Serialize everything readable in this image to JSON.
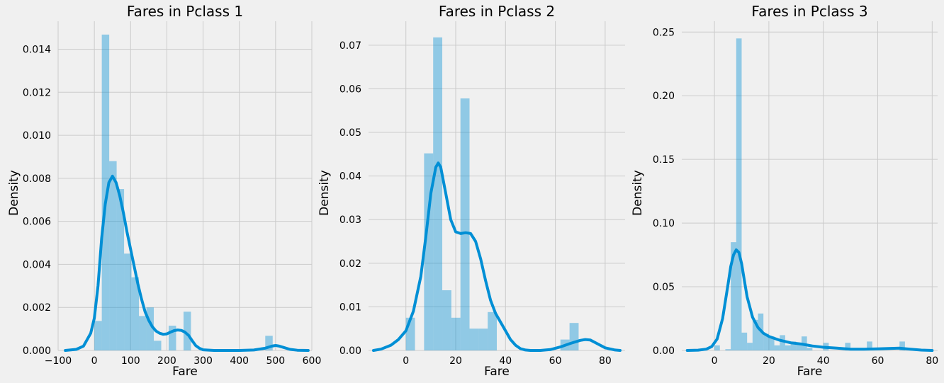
{
  "colors": {
    "background": "#f0f0f0",
    "grid": "#cbcbcb",
    "bar": "#008fd5",
    "kde": "#008fd5",
    "text": "#000000"
  },
  "chart_data": [
    {
      "type": "bar",
      "title": "Fares in Pclass 1",
      "xlabel": "Fare",
      "ylabel": "Density",
      "xlim": [
        -100,
        600
      ],
      "ylim": [
        0,
        0.0153
      ],
      "xticks": [
        -100,
        0,
        100,
        200,
        300,
        400,
        500,
        600
      ],
      "xtick_labels": [
        "−100",
        "0",
        "100",
        "200",
        "300",
        "400",
        "500",
        "600"
      ],
      "yticks": [
        0,
        0.002,
        0.004,
        0.006,
        0.008,
        0.01,
        0.012,
        0.014
      ],
      "ytick_labels": [
        "0.000",
        "0.002",
        "0.004",
        "0.006",
        "0.008",
        "0.010",
        "0.012",
        "0.014"
      ],
      "grid": true,
      "histogram": {
        "bin_edges": [
          0,
          20.5,
          41,
          61.5,
          82,
          102.5,
          123,
          143.5,
          164,
          184.5,
          205,
          225.5,
          246,
          266.5,
          287,
          307.5,
          328,
          348.5,
          369,
          389.5,
          410,
          430.5,
          451,
          471.5,
          492,
          512.5
        ],
        "values": [
          0.00137,
          0.01468,
          0.0088,
          0.0075,
          0.0045,
          0.0034,
          0.0016,
          0.002,
          0.00045,
          0,
          0.00115,
          0,
          0.0018,
          0,
          0,
          0,
          0,
          0,
          0,
          0,
          0,
          0,
          0,
          0.00068,
          0
        ]
      },
      "kde": {
        "x": [
          -80,
          -50,
          -30,
          -10,
          0,
          10,
          20,
          30,
          40,
          50,
          60,
          70,
          80,
          90,
          100,
          110,
          120,
          130,
          140,
          150,
          160,
          170,
          180,
          190,
          200,
          210,
          220,
          230,
          240,
          250,
          260,
          270,
          280,
          290,
          300,
          330,
          360,
          400,
          440,
          470,
          490,
          500,
          510,
          520,
          540,
          560,
          590
        ],
        "y": [
          0,
          5e-05,
          0.0002,
          0.0008,
          0.0015,
          0.003,
          0.0052,
          0.0068,
          0.0078,
          0.0081,
          0.0078,
          0.0072,
          0.0064,
          0.0055,
          0.0047,
          0.0039,
          0.0031,
          0.0024,
          0.0018,
          0.0014,
          0.0011,
          0.0009,
          0.0008,
          0.00075,
          0.00077,
          0.00085,
          0.00092,
          0.00095,
          0.00093,
          0.00085,
          0.0007,
          0.00045,
          0.00022,
          0.0001,
          3e-05,
          0,
          0,
          0,
          2e-05,
          0.0001,
          0.0002,
          0.00023,
          0.0002,
          0.00015,
          5e-05,
          1e-05,
          0
        ]
      }
    },
    {
      "type": "bar",
      "title": "Fares in Pclass 2",
      "xlabel": "Fare",
      "ylabel": "Density",
      "xlim": [
        -15,
        88
      ],
      "ylim": [
        0,
        0.0755
      ],
      "xticks": [
        0,
        20,
        40,
        60,
        80
      ],
      "xtick_labels": [
        "0",
        "20",
        "40",
        "60",
        "80"
      ],
      "yticks": [
        0,
        0.01,
        0.02,
        0.03,
        0.04,
        0.05,
        0.06,
        0.07
      ],
      "ytick_labels": [
        "0.00",
        "0.01",
        "0.02",
        "0.03",
        "0.04",
        "0.05",
        "0.06",
        "0.07"
      ],
      "grid": true,
      "histogram": {
        "bin_edges": [
          0,
          3.65,
          7.3,
          10.95,
          14.6,
          18.25,
          21.9,
          25.55,
          29.2,
          32.85,
          36.5,
          40.15,
          43.8,
          47.45,
          51.1,
          54.75,
          58.4,
          62.05,
          65.7,
          69.35,
          73.0
        ],
        "values": [
          0.0075,
          0,
          0.0452,
          0.0718,
          0.0138,
          0.0075,
          0.0578,
          0.005,
          0.005,
          0.0088,
          0,
          0,
          0,
          0,
          0,
          0,
          0,
          0.0025,
          0.0063,
          0
        ]
      },
      "kde": {
        "x": [
          -13,
          -10,
          -6,
          -3,
          0,
          3,
          6,
          8,
          10,
          12,
          13,
          14,
          16,
          18,
          20,
          22,
          24,
          26,
          28,
          30,
          32,
          34,
          36,
          38,
          40,
          42,
          44,
          46,
          48,
          50,
          54,
          58,
          62,
          66,
          70,
          72,
          74,
          76,
          80,
          84,
          86
        ],
        "y": [
          0,
          0.0003,
          0.0012,
          0.0025,
          0.0045,
          0.009,
          0.017,
          0.026,
          0.036,
          0.042,
          0.043,
          0.042,
          0.036,
          0.03,
          0.0272,
          0.0268,
          0.027,
          0.0268,
          0.025,
          0.021,
          0.016,
          0.0115,
          0.0085,
          0.0065,
          0.0045,
          0.0025,
          0.0012,
          0.0004,
          0.0001,
          0,
          0,
          0.0002,
          0.0008,
          0.0016,
          0.0023,
          0.0025,
          0.0024,
          0.0018,
          0.0006,
          0.0001,
          0
        ]
      }
    },
    {
      "type": "bar",
      "title": "Fares in Pclass 3",
      "xlabel": "Fare",
      "ylabel": "Density",
      "xlim": [
        -12,
        82
      ],
      "ylim": [
        0,
        0.2585
      ],
      "xticks": [
        0,
        20,
        40,
        60,
        80
      ],
      "xtick_labels": [
        "0",
        "20",
        "40",
        "60",
        "80"
      ],
      "yticks": [
        0,
        0.05,
        0.1,
        0.15,
        0.2,
        0.25
      ],
      "ytick_labels": [
        "0.00",
        "0.05",
        "0.10",
        "0.15",
        "0.20",
        "0.25"
      ],
      "grid": true,
      "histogram": {
        "bin_edges": [
          0,
          2.0,
          4.0,
          6.0,
          8.0,
          10.0,
          12.0,
          14.0,
          16.0,
          18.0,
          20.0,
          22.0,
          24.0,
          26.0,
          28.0,
          30.0,
          32.0,
          34.0,
          36.0,
          38.0,
          40.0,
          42.0,
          44.0,
          46.0,
          48.0,
          50.0,
          52.0,
          54.0,
          56.0,
          58.0,
          60.0,
          62.0,
          64.0,
          66.0,
          68.0,
          70.0
        ],
        "values": [
          0.004,
          0,
          0.001,
          0.085,
          0.245,
          0.014,
          0.006,
          0.024,
          0.029,
          0.013,
          0.011,
          0.004,
          0.012,
          0.004,
          0.007,
          0.005,
          0.011,
          0.002,
          0,
          0,
          0.006,
          0,
          0,
          0,
          0.006,
          0,
          0,
          0,
          0.007,
          0,
          0,
          0,
          0,
          0,
          0.007
        ]
      },
      "kde": {
        "x": [
          -10,
          -6,
          -3,
          -1,
          1,
          3,
          5,
          6,
          7,
          8,
          9,
          10,
          11,
          12,
          14,
          16,
          18,
          20,
          24,
          28,
          32,
          36,
          40,
          45,
          50,
          55,
          60,
          64,
          68,
          72,
          76,
          80
        ],
        "y": [
          0,
          0.0002,
          0.001,
          0.003,
          0.009,
          0.025,
          0.052,
          0.066,
          0.075,
          0.079,
          0.077,
          0.068,
          0.055,
          0.042,
          0.026,
          0.018,
          0.0135,
          0.011,
          0.008,
          0.006,
          0.005,
          0.0035,
          0.0025,
          0.0018,
          0.001,
          0.001,
          0.0012,
          0.0015,
          0.0018,
          0.001,
          0.0003,
          0
        ]
      }
    }
  ]
}
